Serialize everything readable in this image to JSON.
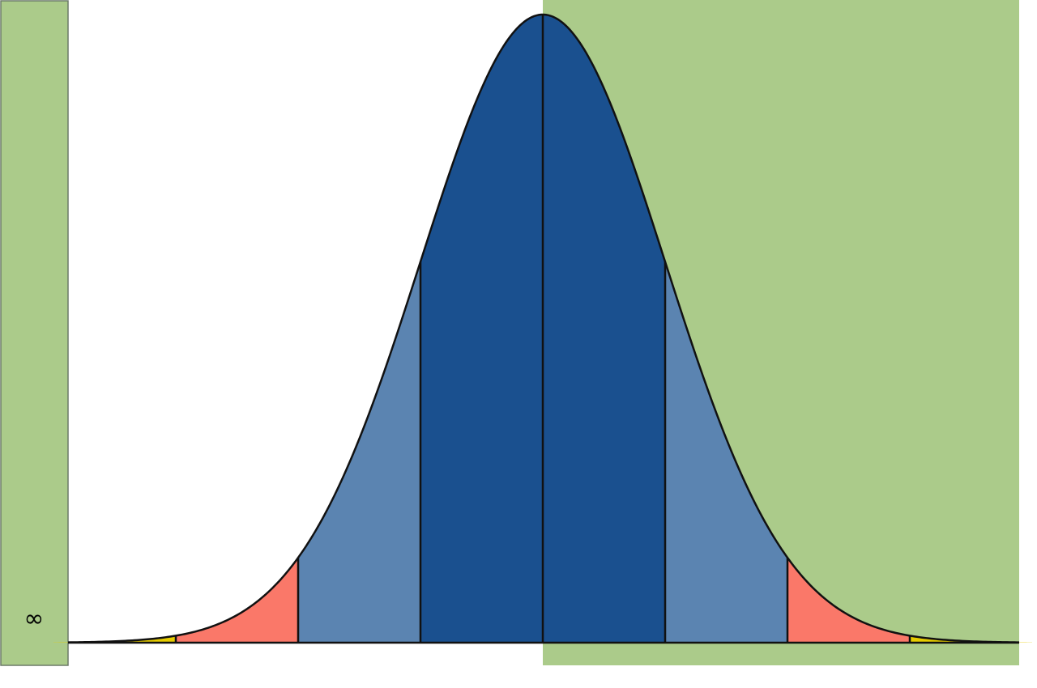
{
  "diagram": {
    "left_panel_label": "∞",
    "curve": {
      "distribution": "normal",
      "mean": 0,
      "sd": 1,
      "x_range": [
        -4,
        4
      ],
      "boundaries_sd": [
        -3,
        -2,
        -1,
        0,
        1,
        2,
        3
      ]
    },
    "regions": [
      {
        "id": "center-band",
        "from_sd": -1,
        "to_sd": 1,
        "color": "#1a508f"
      },
      {
        "id": "middle-band",
        "from_sd": 1,
        "to_sd": 2,
        "color": "#5b84b1"
      },
      {
        "id": "outer-band",
        "from_sd": 2,
        "to_sd": 3,
        "color": "#fa7869"
      },
      {
        "id": "tail-band",
        "from_sd": 3,
        "to_sd": 4,
        "color": "#e6cc00"
      }
    ],
    "colors": {
      "highlight_green": "#abcb8a",
      "panel_border": "#6b7a68",
      "curve_stroke": "#111111",
      "background": "#ffffff"
    }
  }
}
